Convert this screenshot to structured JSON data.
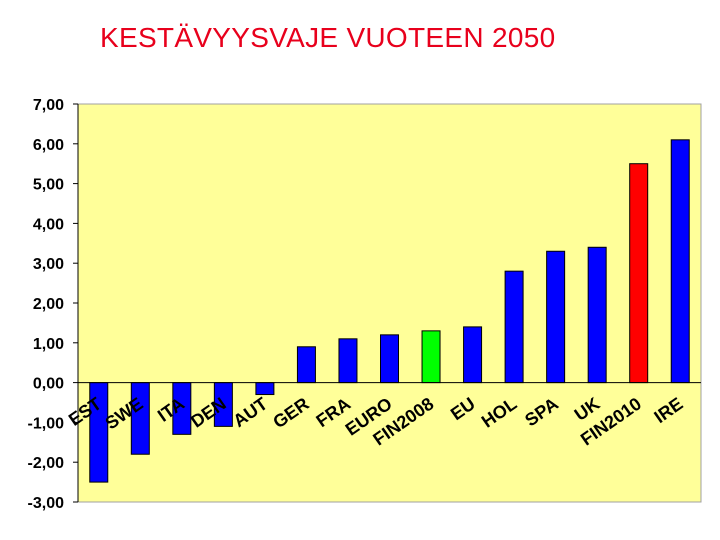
{
  "title": "KESTÄVYYSVAJE VUOTEEN 2050",
  "chart_data": {
    "type": "bar",
    "title": "KESTÄVYYSVAJE VUOTEEN 2050",
    "categories": [
      "EST",
      "SWE",
      "ITA",
      "DEN",
      "AUT",
      "GER",
      "FRA",
      "EURO",
      "FIN2008",
      "EU",
      "HOL",
      "SPA",
      "UK",
      "FIN2010",
      "IRE"
    ],
    "values": [
      -2.5,
      -1.8,
      -1.3,
      -1.1,
      -0.3,
      0.9,
      1.1,
      1.2,
      1.3,
      1.4,
      2.8,
      3.3,
      3.4,
      5.5,
      6.1
    ],
    "colors": [
      "#0000ff",
      "#0000ff",
      "#0000ff",
      "#0000ff",
      "#0000ff",
      "#0000ff",
      "#0000ff",
      "#0000ff",
      "#00ff00",
      "#0000ff",
      "#0000ff",
      "#0000ff",
      "#0000ff",
      "#ff0000",
      "#0000ff"
    ],
    "ylim": [
      -3,
      7
    ],
    "yticks": [
      "7,00",
      "6,00",
      "5,00",
      "4,00",
      "3,00",
      "2,00",
      "1,00",
      "0,00",
      "-1,00",
      "-2,00",
      "-3,00"
    ],
    "ytick_values": [
      7,
      6,
      5,
      4,
      3,
      2,
      1,
      0,
      -1,
      -2,
      -3
    ],
    "xlabel": "",
    "ylabel": "",
    "grid": false,
    "legend": "none",
    "plot_background": "#ffff99"
  }
}
